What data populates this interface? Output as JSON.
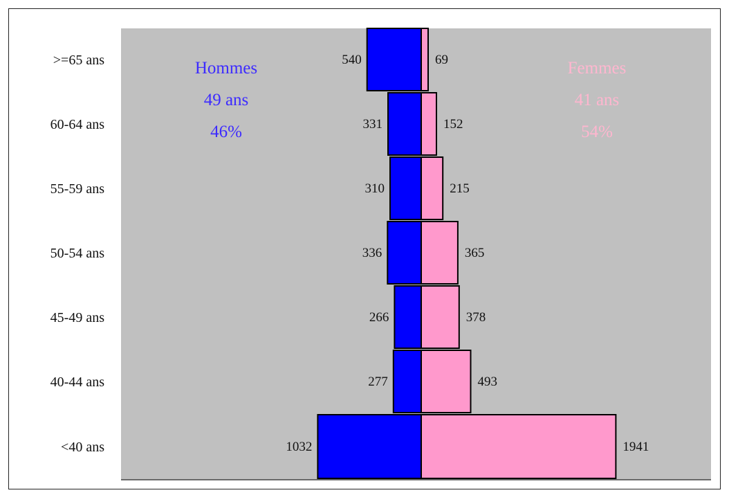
{
  "chart_data": {
    "type": "bar",
    "orientation": "horizontal",
    "layout": "population-pyramid",
    "categories": [
      ">=65 ans",
      "60-64 ans",
      "55-59 ans",
      "50-54 ans",
      "45-49 ans",
      "40-44 ans",
      "<40 ans"
    ],
    "series": [
      {
        "name": "Hommes",
        "side": "left",
        "values": [
          540,
          331,
          310,
          336,
          266,
          277,
          1032
        ]
      },
      {
        "name": "Femmes",
        "side": "right",
        "values": [
          69,
          152,
          215,
          365,
          378,
          493,
          1941
        ]
      }
    ],
    "colors": {
      "men": "#0000ff",
      "women": "#ff99cc",
      "plot_background": "#c0c0c0",
      "men_annotation": "#3d2bff",
      "women_annotation": "#ffb6cf"
    },
    "annotations": {
      "men": [
        "Hommes",
        "49 ans",
        "46%"
      ],
      "women": [
        "Femmes",
        "41 ans",
        "54%"
      ]
    },
    "grid": false
  }
}
